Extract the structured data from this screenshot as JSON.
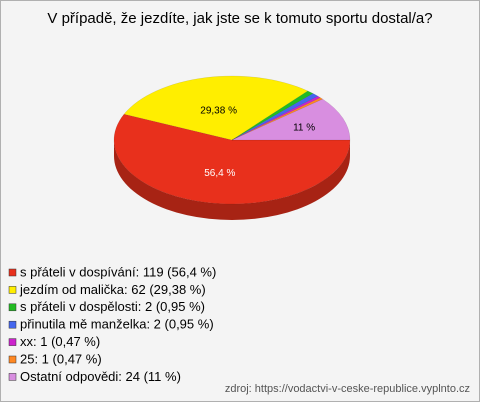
{
  "chart_data": {
    "type": "pie",
    "title": "V případě, že jezdíte, jak jste se k tomuto sportu dostal/a?",
    "categories": [
      "s přáteli v dospívání: 119 (56,4 %)",
      "jezdím od malička: 62 (29,38 %)",
      "s přáteli v dospělosti: 2 (0,95 %)",
      "přinutila mě manželka: 2 (0,95 %)",
      "xx: 1 (0,47 %)",
      "25: 1 (0,47 %)",
      "Ostatní odpovědi: 24 (11 %)"
    ],
    "values": [
      56.4,
      29.38,
      0.95,
      0.95,
      0.47,
      0.47,
      11
    ],
    "value_labels": [
      "56,4 %",
      "29,38 %",
      null,
      null,
      null,
      null,
      "11 %"
    ],
    "colors": [
      "#e8301c",
      "#ffee00",
      "#22bb22",
      "#4466ee",
      "#cc22cc",
      "#ff8822",
      "#d88ee0"
    ],
    "source": "zdroj: https://vodactvi-v-ceske-republice.vyplnto.cz"
  }
}
